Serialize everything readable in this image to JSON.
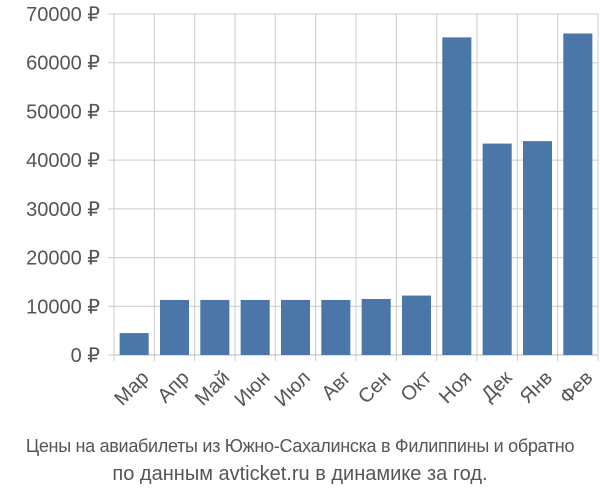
{
  "chart_data": {
    "type": "bar",
    "categories": [
      "Мар",
      "Апр",
      "Май",
      "Июн",
      "Июл",
      "Авг",
      "Сен",
      "Окт",
      "Ноя",
      "Дек",
      "Янв",
      "Фев"
    ],
    "values": [
      4500,
      11300,
      11300,
      11300,
      11300,
      11300,
      11500,
      12200,
      65200,
      43400,
      43900,
      66000
    ],
    "ylim": [
      0,
      70000
    ],
    "yticks": [
      0,
      10000,
      20000,
      30000,
      40000,
      50000,
      60000,
      70000
    ],
    "y_tick_labels": [
      "0 ₽",
      "10000 ₽",
      "20000 ₽",
      "30000 ₽",
      "40000 ₽",
      "50000 ₽",
      "60000 ₽",
      "70000 ₽"
    ],
    "grid": true,
    "bar_color": "#4a76a8",
    "grid_color": "#cccccc"
  },
  "caption": {
    "line1": "Цены на авиабилеты из Южно-Сахалинска в Филиппины и обратно",
    "line2": "по данным avticket.ru в динамике за год."
  }
}
